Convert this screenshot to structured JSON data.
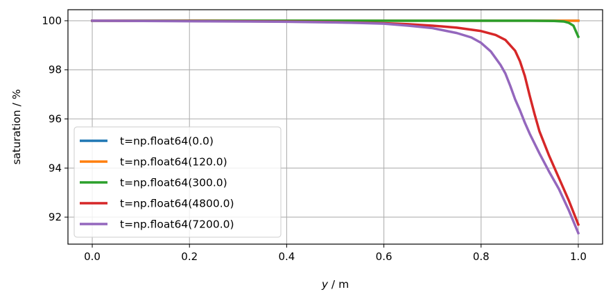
{
  "chart_data": {
    "type": "line",
    "title": "",
    "xlabel_var": "y",
    "xlabel_unit": " / m",
    "ylabel": "saturation / %",
    "xlim": [
      -0.05,
      1.05
    ],
    "ylim": [
      90.9,
      100.45
    ],
    "xticks": [
      0.0,
      0.2,
      0.4,
      0.6,
      0.8,
      1.0
    ],
    "xtick_labels": [
      "0.0",
      "0.2",
      "0.4",
      "0.6",
      "0.8",
      "1.0"
    ],
    "yticks": [
      92,
      94,
      96,
      98,
      100
    ],
    "ytick_labels": [
      "92",
      "94",
      "96",
      "98",
      "100"
    ],
    "grid": true,
    "legend_position": "lower-left",
    "series": [
      {
        "name": "t=np.float64(0.0)",
        "color": "#1f77b4",
        "x": [
          0.0,
          0.2,
          0.4,
          0.6,
          0.8,
          1.0
        ],
        "y": [
          100.0,
          100.0,
          100.0,
          100.0,
          100.0,
          100.0
        ]
      },
      {
        "name": "t=np.float64(120.0)",
        "color": "#ff7f0e",
        "x": [
          0.0,
          0.2,
          0.4,
          0.6,
          0.8,
          1.0
        ],
        "y": [
          100.0,
          100.0,
          100.0,
          100.0,
          100.0,
          100.0
        ]
      },
      {
        "name": "t=np.float64(300.0)",
        "color": "#2ca02c",
        "x": [
          0.0,
          0.2,
          0.4,
          0.6,
          0.8,
          0.9,
          0.95,
          0.97,
          0.98,
          0.99,
          1.0
        ],
        "y": [
          100.0,
          100.0,
          100.0,
          100.0,
          100.0,
          100.0,
          99.99,
          99.97,
          99.92,
          99.8,
          99.35
        ]
      },
      {
        "name": "t=np.float64(4800.0)",
        "color": "#d62728",
        "x": [
          0.0,
          0.2,
          0.4,
          0.5,
          0.6,
          0.65,
          0.7,
          0.75,
          0.8,
          0.83,
          0.85,
          0.87,
          0.88,
          0.89,
          0.9,
          0.91,
          0.92,
          0.94,
          0.96,
          0.98,
          1.0
        ],
        "y": [
          100.0,
          99.99,
          99.97,
          99.94,
          99.9,
          99.86,
          99.8,
          99.72,
          99.58,
          99.42,
          99.22,
          98.78,
          98.35,
          97.75,
          96.95,
          96.2,
          95.5,
          94.5,
          93.6,
          92.7,
          91.7
        ]
      },
      {
        "name": "t=np.float64(7200.0)",
        "color": "#9467bd",
        "x": [
          0.0,
          0.2,
          0.4,
          0.5,
          0.55,
          0.6,
          0.65,
          0.7,
          0.75,
          0.78,
          0.8,
          0.82,
          0.84,
          0.85,
          0.86,
          0.87,
          0.88,
          0.89,
          0.9,
          0.92,
          0.94,
          0.96,
          0.98,
          1.0
        ],
        "y": [
          100.0,
          99.98,
          99.96,
          99.93,
          99.91,
          99.88,
          99.8,
          99.7,
          99.5,
          99.32,
          99.1,
          98.75,
          98.2,
          97.85,
          97.35,
          96.8,
          96.35,
          95.85,
          95.4,
          94.6,
          93.85,
          93.15,
          92.3,
          91.35
        ]
      }
    ]
  }
}
